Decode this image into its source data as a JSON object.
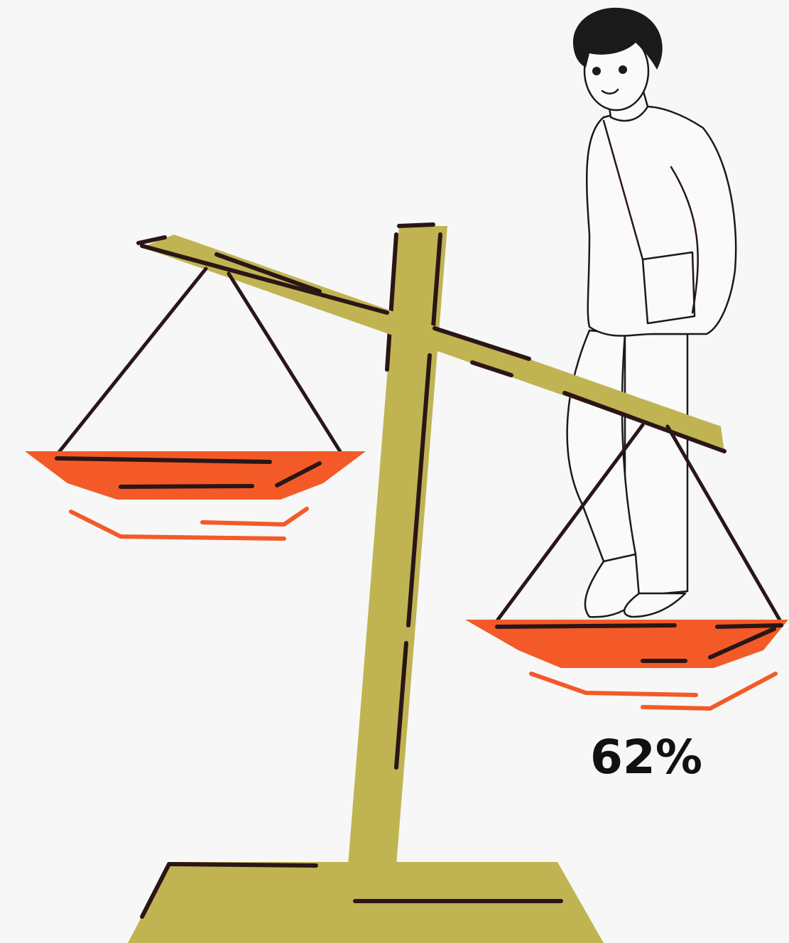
{
  "caption": "62%"
}
